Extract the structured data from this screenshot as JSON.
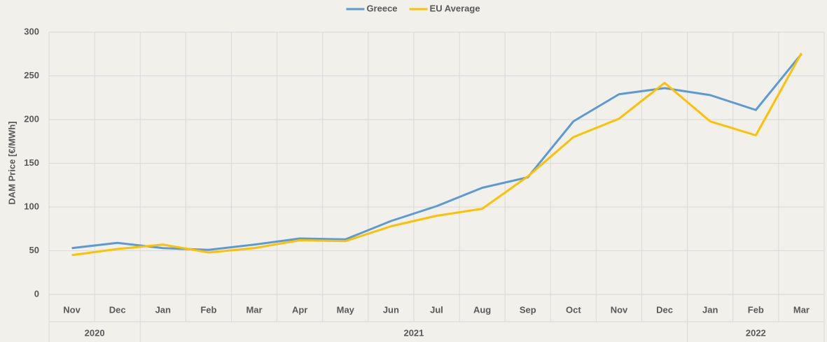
{
  "chart_data": {
    "type": "line",
    "y_label": "DAM Price [€/MWh]",
    "categories": [
      "Nov",
      "Dec",
      "Jan",
      "Feb",
      "Mar",
      "Apr",
      "May",
      "Jun",
      "Jul",
      "Aug",
      "Sep",
      "Oct",
      "Nov",
      "Dec",
      "Jan",
      "Feb",
      "Mar"
    ],
    "category_groups": [
      {
        "label": "2020",
        "first": 0,
        "last": 1
      },
      {
        "label": "2021",
        "first": 2,
        "last": 13
      },
      {
        "label": "2022",
        "first": 14,
        "last": 16
      }
    ],
    "series": [
      {
        "name": "Greece",
        "color": "#5b9bd5",
        "values": [
          53,
          59,
          53,
          51,
          57,
          64,
          63,
          84,
          101,
          122,
          134,
          198,
          229,
          236,
          228,
          211,
          275
        ]
      },
      {
        "name": "EU Average",
        "color": "#ffc000",
        "values": [
          45,
          52,
          57,
          48,
          53,
          62,
          61,
          78,
          90,
          98,
          135,
          180,
          201,
          242,
          198,
          182,
          276
        ]
      }
    ],
    "ylim": [
      0,
      300
    ],
    "yticks": [
      0,
      50,
      100,
      150,
      200,
      250,
      300
    ],
    "grid": true,
    "legend": "top"
  }
}
